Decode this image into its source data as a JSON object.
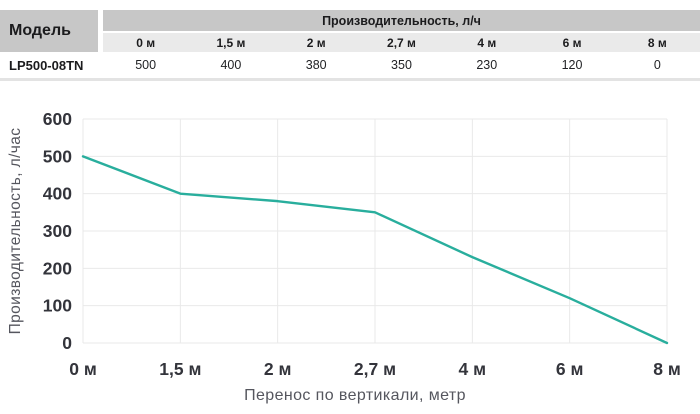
{
  "table": {
    "model_header": "Модель",
    "group_header": "Производительность, л/ч",
    "columns": [
      "0 м",
      "1,5 м",
      "2 м",
      "2,7 м",
      "4 м",
      "6 м",
      "8 м"
    ],
    "row": {
      "model": "LP500-08TN",
      "values": [
        "500",
        "400",
        "380",
        "350",
        "230",
        "120",
        "0"
      ]
    },
    "colors": {
      "header_bg": "#c7c7c7",
      "subheader_bg": "#eaeaea",
      "strip": "#e3e3e3",
      "text": "#1b1b1d"
    }
  },
  "chart_data": {
    "type": "line",
    "title": "",
    "categories": [
      "0 м",
      "1,5 м",
      "2 м",
      "2,7 м",
      "4 м",
      "6 м",
      "8 м"
    ],
    "series": [
      {
        "name": "LP500-08TN",
        "values": [
          500,
          400,
          380,
          350,
          230,
          120,
          0
        ]
      }
    ],
    "xlabel": "Перенос по вертикали,  метр",
    "ylabel": "Производительность,  л/час",
    "ylim": [
      0,
      600
    ],
    "yticks": [
      0,
      100,
      200,
      300,
      400,
      500,
      600
    ],
    "grid": true,
    "legend": false,
    "colors": {
      "line": "#29ae9d",
      "gridline": "#e9e9e9",
      "tick_label": "#33343b",
      "axis_title": "#55565e"
    }
  }
}
